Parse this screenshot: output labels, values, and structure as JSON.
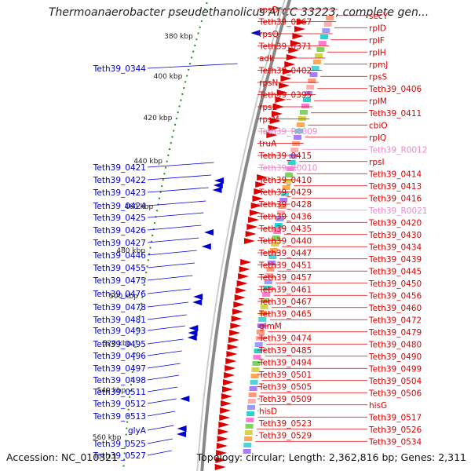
{
  "title": "Thermoanaerobacter pseudethanolicus ATCC 33223, complete gen...",
  "accession": "Accession: NC_010321",
  "topology": "Topology: circular; Length: 2,362,816 bp; Genes: 2,311",
  "colors": {
    "red": "#dd0000",
    "blue": "#0000cc",
    "pink": "#ee88cc",
    "tick": "#228b22",
    "backbone": "#888888"
  },
  "scale": [
    {
      "label": "380 kbp"
    },
    {
      "label": "400 kbp"
    },
    {
      "label": "420 kbp"
    },
    {
      "label": "440 kbp"
    },
    {
      "label": "460 kbp"
    },
    {
      "label": "480 kbp"
    },
    {
      "label": "500 kbp"
    },
    {
      "label": "520 kbp"
    },
    {
      "label": "540 kbp"
    },
    {
      "label": "560 kbp"
    }
  ],
  "left_labels": [
    {
      "text": "Teth39_0344"
    },
    {
      "text": "Teth39_0421"
    },
    {
      "text": "Teth39_0422"
    },
    {
      "text": "Teth39_0423"
    },
    {
      "text": "Teth39_0424"
    },
    {
      "text": "Teth39_0425"
    },
    {
      "text": "Teth39_0426"
    },
    {
      "text": "Teth39_0427"
    },
    {
      "text": "Teth39_0446"
    },
    {
      "text": "Teth39_0455"
    },
    {
      "text": "Teth39_0475"
    },
    {
      "text": "Teth39_0476"
    },
    {
      "text": "Teth39_0478"
    },
    {
      "text": "Teth39_0481"
    },
    {
      "text": "Teth39_0493"
    },
    {
      "text": "Teth39_0495"
    },
    {
      "text": "Teth39_0496"
    },
    {
      "text": "Teth39_0497"
    },
    {
      "text": "Teth39_0498"
    },
    {
      "text": "Teth39_0511"
    },
    {
      "text": "Teth39_0512"
    },
    {
      "text": "Teth39_0513"
    },
    {
      "text": "glyA"
    },
    {
      "text": "Teth39_0525"
    },
    {
      "text": "Teth39_0527"
    }
  ],
  "right_labels": [
    {
      "text": "rpsD",
      "pink": false
    },
    {
      "text": "secY",
      "pink": false
    },
    {
      "text": "Teth39_0367",
      "pink": false
    },
    {
      "text": "rplD",
      "pink": false
    },
    {
      "text": "rpsQ",
      "pink": false
    },
    {
      "text": "rplF",
      "pink": false
    },
    {
      "text": "Teth39_0371",
      "pink": false
    },
    {
      "text": "rplH",
      "pink": false
    },
    {
      "text": "adk",
      "pink": false
    },
    {
      "text": "rpmJ",
      "pink": false
    },
    {
      "text": "Teth39_0402",
      "pink": false
    },
    {
      "text": "rpsS",
      "pink": false
    },
    {
      "text": "rpsN",
      "pink": false
    },
    {
      "text": "Teth39_0406",
      "pink": false
    },
    {
      "text": "Teth39_0395",
      "pink": false
    },
    {
      "text": "rplM",
      "pink": false
    },
    {
      "text": "rpsE",
      "pink": false
    },
    {
      "text": "Teth39_0411",
      "pink": false
    },
    {
      "text": "rpsM",
      "pink": false
    },
    {
      "text": "cbiO",
      "pink": false
    },
    {
      "text": "Teth39_R0009",
      "pink": true
    },
    {
      "text": "rplQ",
      "pink": false
    },
    {
      "text": "truA",
      "pink": false
    },
    {
      "text": "Teth39_R0012",
      "pink": true
    },
    {
      "text": "Teth39_0415",
      "pink": false
    },
    {
      "text": "rpsI",
      "pink": false
    },
    {
      "text": "Teth39_R0010",
      "pink": true
    },
    {
      "text": "Teth39_0414",
      "pink": false
    },
    {
      "text": "Teth39_0410",
      "pink": false
    },
    {
      "text": "Teth39_0413",
      "pink": false
    },
    {
      "text": "Teth39_0429",
      "pink": false
    },
    {
      "text": "Teth39_0416",
      "pink": false
    },
    {
      "text": "Teth39_0428",
      "pink": false
    },
    {
      "text": "Teth39_R0021",
      "pink": true
    },
    {
      "text": "Teth39_0436",
      "pink": false
    },
    {
      "text": "Teth39_0420",
      "pink": false
    },
    {
      "text": "Teth39_0435",
      "pink": false
    },
    {
      "text": "Teth39_0430",
      "pink": false
    },
    {
      "text": "Teth39_0440",
      "pink": false
    },
    {
      "text": "Teth39_0434",
      "pink": false
    },
    {
      "text": "Teth39_0447",
      "pink": false
    },
    {
      "text": "Teth39_0439",
      "pink": false
    },
    {
      "text": "Teth39_0451",
      "pink": false
    },
    {
      "text": "Teth39_0445",
      "pink": false
    },
    {
      "text": "Teth39_0457",
      "pink": false
    },
    {
      "text": "Teth39_0450",
      "pink": false
    },
    {
      "text": "Teth39_0461",
      "pink": false
    },
    {
      "text": "Teth39_0456",
      "pink": false
    },
    {
      "text": "Teth39_0467",
      "pink": false
    },
    {
      "text": "Teth39_0460",
      "pink": false
    },
    {
      "text": "Teth39_0465",
      "pink": false
    },
    {
      "text": "Teth39_0472",
      "pink": false
    },
    {
      "text": "glmM",
      "pink": false
    },
    {
      "text": "Teth39_0479",
      "pink": false
    },
    {
      "text": "Teth39_0474",
      "pink": false
    },
    {
      "text": "Teth39_0480",
      "pink": false
    },
    {
      "text": "Teth39_0485",
      "pink": false
    },
    {
      "text": "Teth39_0490",
      "pink": false
    },
    {
      "text": "Teth39_0494",
      "pink": false
    },
    {
      "text": "Teth39_0499",
      "pink": false
    },
    {
      "text": "Teth39_0501",
      "pink": false
    },
    {
      "text": "Teth39_0504",
      "pink": false
    },
    {
      "text": "Teth39_0505",
      "pink": false
    },
    {
      "text": "Teth39_0506",
      "pink": false
    },
    {
      "text": "Teth39_0509",
      "pink": false
    },
    {
      "text": "hisG",
      "pink": false
    },
    {
      "text": "hisD",
      "pink": false
    },
    {
      "text": "Teth39_0517",
      "pink": false
    },
    {
      "text": "Teth39_0523",
      "pink": false
    },
    {
      "text": "Teth39_0526",
      "pink": false
    },
    {
      "text": "Teth39_0529",
      "pink": false
    },
    {
      "text": "Teth39_0534",
      "pink": false
    }
  ]
}
